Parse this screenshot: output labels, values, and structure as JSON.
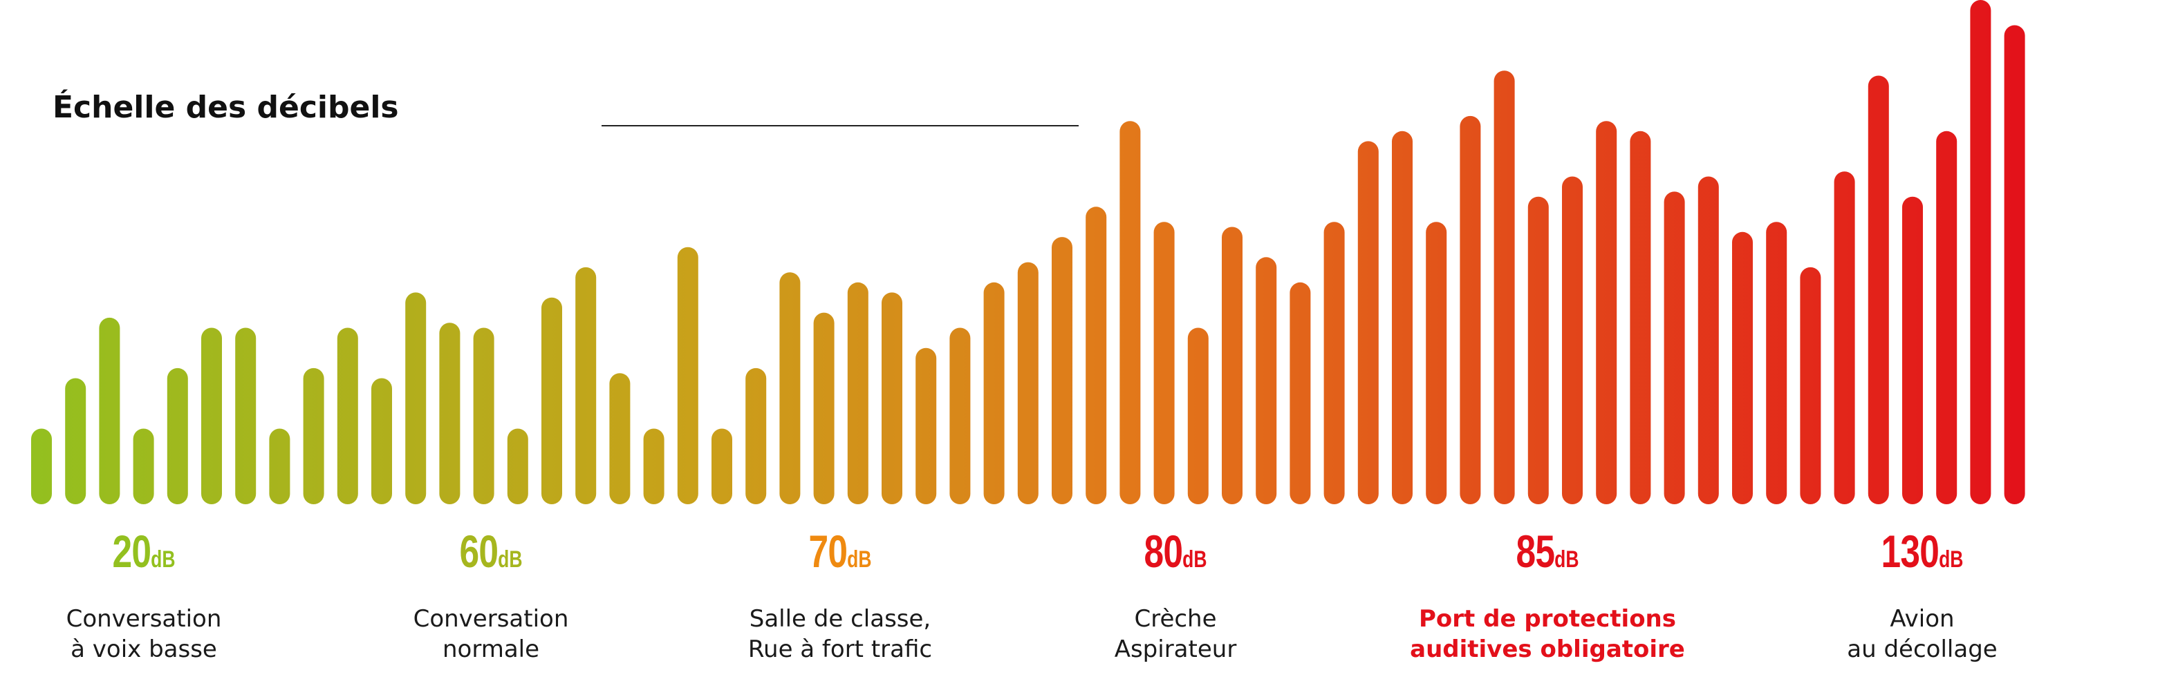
{
  "title": "Échelle des décibels",
  "levels": [
    {
      "value": "20",
      "unit": "dB",
      "color": "#93c01f",
      "caption": [
        "Conversation",
        "à voix basse"
      ],
      "caption_color": "#1a1a1a"
    },
    {
      "value": "60",
      "unit": "dB",
      "color": "#a6b61e",
      "caption": [
        "Conversation",
        "normale"
      ],
      "caption_color": "#1a1a1a"
    },
    {
      "value": "70",
      "unit": "dB",
      "color": "#ef8a10",
      "caption": [
        "Salle de classe,",
        "Rue à fort trafic"
      ],
      "caption_color": "#1a1a1a"
    },
    {
      "value": "80",
      "unit": "dB",
      "color": "#e3101a",
      "caption": [
        "Crèche",
        "Aspirateur"
      ],
      "caption_color": "#1a1a1a"
    },
    {
      "value": "85",
      "unit": "dB",
      "color": "#e3101a",
      "caption": [
        "Port de protections",
        "auditives obligatoire"
      ],
      "caption_color": "#e3101a"
    },
    {
      "value": "130",
      "unit": "dB",
      "color": "#e3101a",
      "caption": [
        "Avion",
        "au décollage"
      ],
      "caption_color": "#1a1a1a"
    }
  ],
  "equalizer": {
    "gradient_colors": [
      "#93c01f",
      "#c9a11a",
      "#e2781a",
      "#e3101a"
    ],
    "bar_levels": [
      0.15,
      0.25,
      0.37,
      0.15,
      0.27,
      0.35,
      0.35,
      0.15,
      0.27,
      0.35,
      0.25,
      0.42,
      0.36,
      0.35,
      0.15,
      0.41,
      0.47,
      0.26,
      0.15,
      0.51,
      0.15,
      0.27,
      0.46,
      0.38,
      0.44,
      0.42,
      0.31,
      0.35,
      0.44,
      0.48,
      0.53,
      0.59,
      0.76,
      0.56,
      0.35,
      0.55,
      0.49,
      0.44,
      0.56,
      0.72,
      0.74,
      0.56,
      0.77,
      0.86,
      0.61,
      0.65,
      0.76,
      0.74,
      0.62,
      0.65,
      0.54,
      0.56,
      0.47,
      0.66,
      0.85,
      0.61,
      0.74,
      1.0,
      0.95
    ]
  }
}
